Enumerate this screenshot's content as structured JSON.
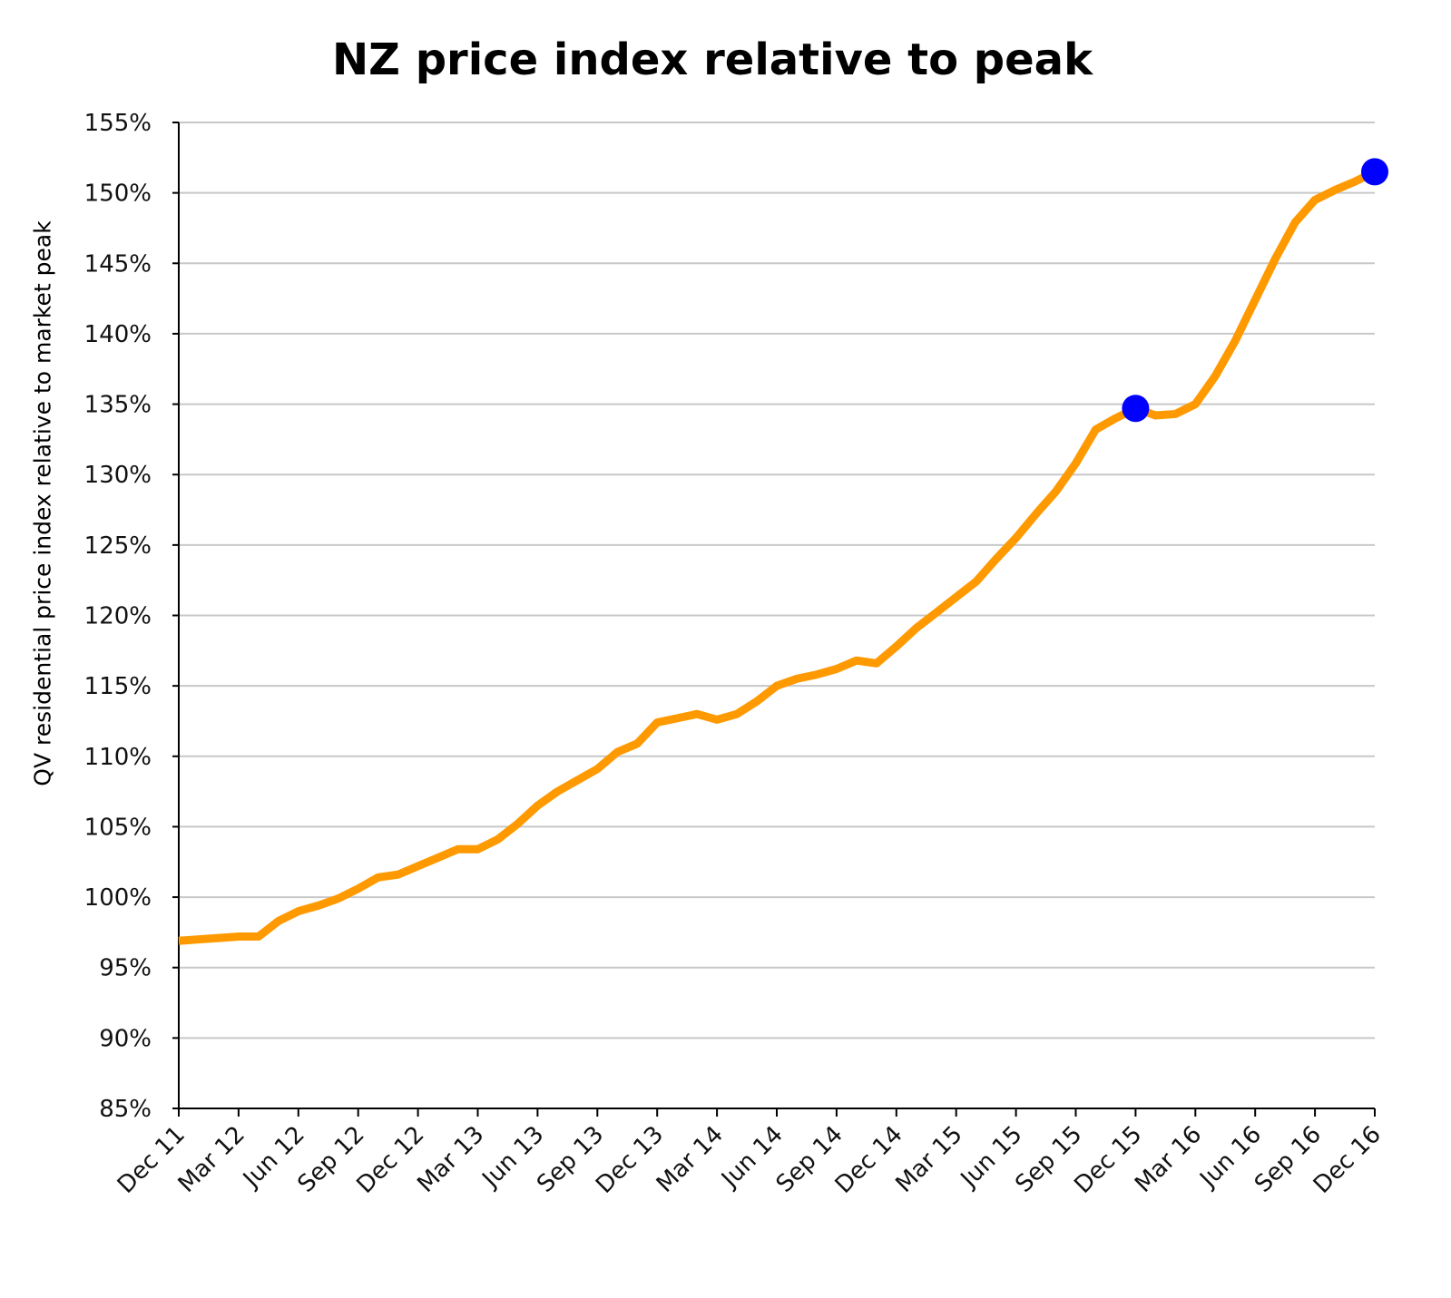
{
  "chart_data": {
    "type": "line",
    "title": "NZ price index relative to peak",
    "xlabel": "",
    "ylabel": "QV residential price index relative to market peak",
    "ylim": [
      85,
      155
    ],
    "y_ticks": [
      "85%",
      "90%",
      "95%",
      "100%",
      "105%",
      "110%",
      "115%",
      "120%",
      "125%",
      "130%",
      "135%",
      "140%",
      "145%",
      "150%",
      "155%"
    ],
    "y_tick_values": [
      85,
      90,
      95,
      100,
      105,
      110,
      115,
      120,
      125,
      130,
      135,
      140,
      145,
      150,
      155
    ],
    "x_ticks": [
      "Dec 11",
      "Mar 12",
      "Jun 12",
      "Sep 12",
      "Dec 12",
      "Mar 13",
      "Jun 13",
      "Sep 13",
      "Dec 13",
      "Mar 14",
      "Jun 14",
      "Sep 14",
      "Dec 14",
      "Mar 15",
      "Jun 15",
      "Sep 15",
      "Dec 15",
      "Mar 16",
      "Jun 16",
      "Sep 16",
      "Dec 16"
    ],
    "x_unit": "monthly, Dec 11 to Dec 16",
    "grid": true,
    "series": [
      {
        "name": "NZ price index",
        "color": "#FF9900",
        "values": [
          96.9,
          97.0,
          97.1,
          97.2,
          97.2,
          98.3,
          99.0,
          99.4,
          99.9,
          100.6,
          101.4,
          101.6,
          102.2,
          102.8,
          103.4,
          103.4,
          104.1,
          105.2,
          106.5,
          107.5,
          108.3,
          109.1,
          110.3,
          110.9,
          112.4,
          112.7,
          113.0,
          112.6,
          113.0,
          113.9,
          115.0,
          115.5,
          115.8,
          116.2,
          116.8,
          116.6,
          117.8,
          119.1,
          120.2,
          121.3,
          122.4,
          124.0,
          125.5,
          127.2,
          128.8,
          130.8,
          133.2,
          134.0,
          134.7,
          134.2,
          134.3,
          135.0,
          137.0,
          139.5,
          142.4,
          145.3,
          147.9,
          149.5,
          150.2,
          150.8,
          151.5
        ]
      }
    ],
    "highlights": [
      {
        "label": "Dec 15",
        "index": 48,
        "value": 134.7,
        "color": "#0000FF"
      },
      {
        "label": "Dec 16",
        "index": 60,
        "value": 151.5,
        "color": "#0000FF"
      }
    ]
  }
}
